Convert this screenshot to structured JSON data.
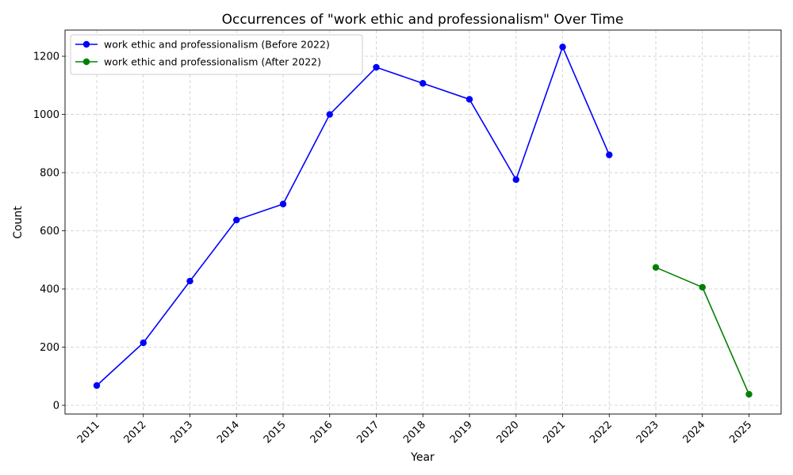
{
  "chart_data": {
    "type": "line",
    "title": "Occurrences of \"work ethic and professionalism\" Over Time",
    "xlabel": "Year",
    "ylabel": "Count",
    "x_ticks": [
      "2011",
      "2012",
      "2013",
      "2014",
      "2015",
      "2016",
      "2017",
      "2018",
      "2019",
      "2020",
      "2021",
      "2022",
      "2023",
      "2024",
      "2025"
    ],
    "ylim": [
      -30,
      1290
    ],
    "y_ticks": [
      0,
      200,
      400,
      600,
      800,
      1000,
      1200
    ],
    "grid": true,
    "legend_position": "top-left",
    "series": [
      {
        "name": "work ethic and professionalism (Before 2022)",
        "color": "#0000ff",
        "x": [
          2011,
          2012,
          2013,
          2014,
          2015,
          2016,
          2017,
          2018,
          2019,
          2020,
          2021,
          2022
        ],
        "y": [
          68,
          215,
          427,
          637,
          692,
          1000,
          1162,
          1107,
          1052,
          776,
          1232,
          861
        ]
      },
      {
        "name": "work ethic and professionalism (After 2022)",
        "color": "#008000",
        "x": [
          2023,
          2024,
          2025
        ],
        "y": [
          474,
          406,
          38
        ]
      }
    ]
  }
}
